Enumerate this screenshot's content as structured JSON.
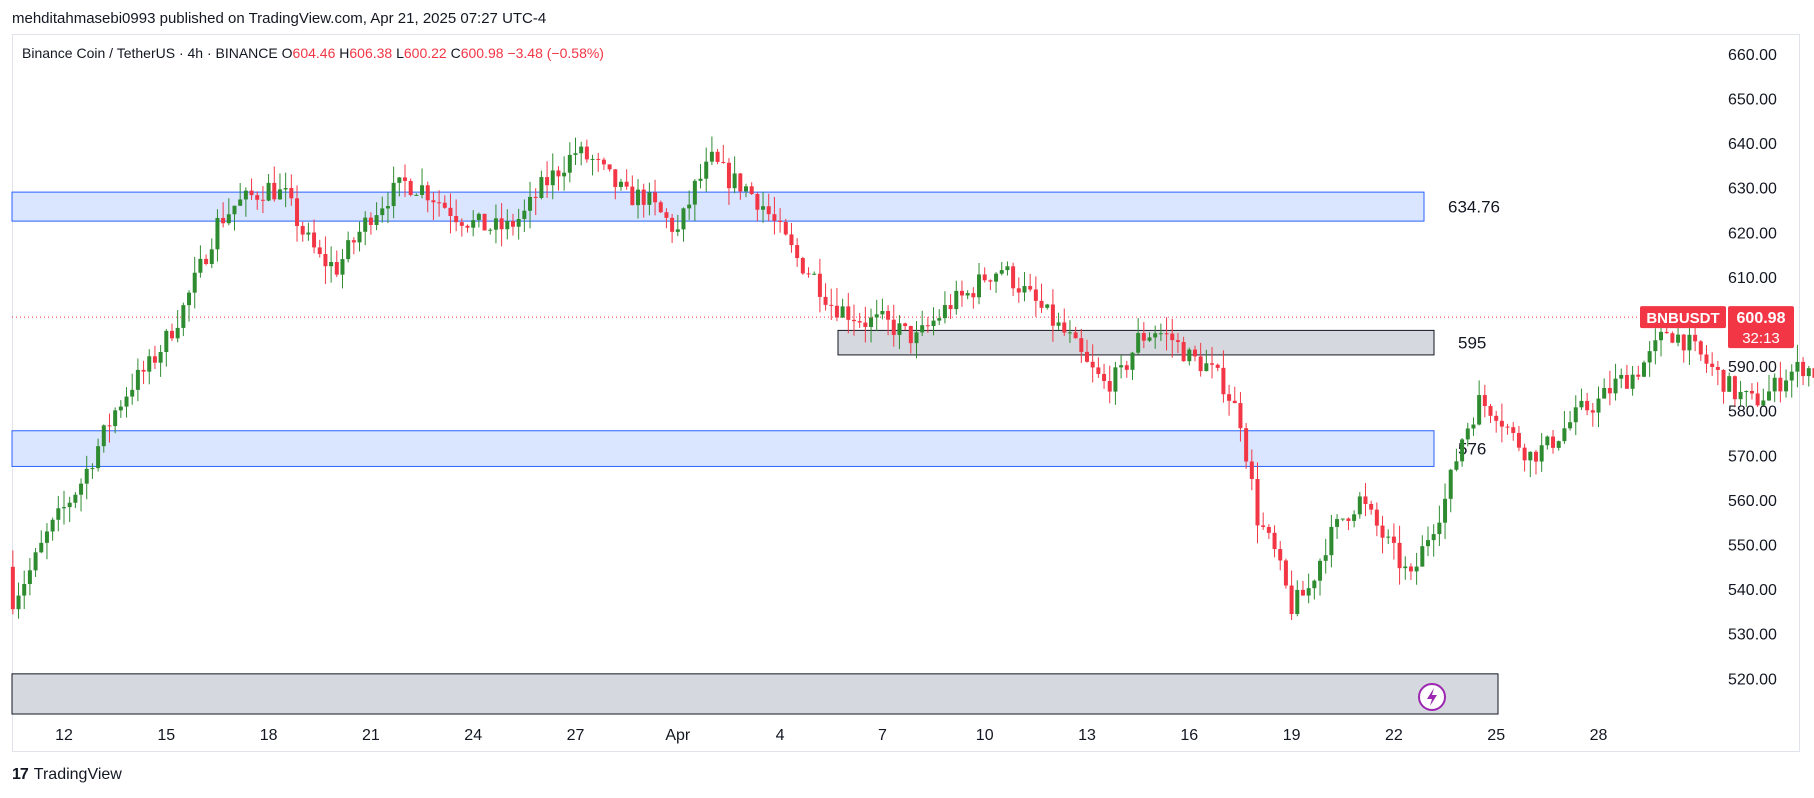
{
  "header": {
    "publisher_line": "mehditahmasebi0993 published on TradingView.com, Apr 21, 2025 07:27 UTC-4"
  },
  "legend": {
    "symbol_line": "Binance Coin / TetherUS · 4h · BINANCE",
    "o_label": "O",
    "o_value": "604.46",
    "h_label": "H",
    "h_value": "606.38",
    "l_label": "L",
    "l_value": "600.22",
    "c_label": "C",
    "c_value": "600.98",
    "change": "−3.48 (−0.58%)"
  },
  "price_tag": {
    "ticker": "BNBUSDT",
    "price": "600.98",
    "countdown": "32:13"
  },
  "footer": {
    "brand": "TradingView",
    "logo_glyph": "17"
  },
  "colors": {
    "up": "#22ab94",
    "up_dark": "#2e8b30",
    "down": "#f23645",
    "blue_zone": "#d6e2ff",
    "blue_border": "#2962ff",
    "gray_zone": "#d1d4dc",
    "gray_border": "#131722",
    "price_line": "#f23645"
  },
  "chart_data": {
    "type": "candlestick",
    "symbol": "BNBUSDT",
    "timeframe": "4h",
    "y_ticks": [
      "660.00",
      "650.00",
      "640.00",
      "630.00",
      "620.00",
      "610.00",
      "590.00",
      "580.00",
      "570.00",
      "560.00",
      "550.00",
      "540.00",
      "530.00",
      "520.00"
    ],
    "ylim": [
      512,
      664
    ],
    "x_ticks": [
      "12",
      "15",
      "18",
      "21",
      "24",
      "27",
      "Apr",
      "4",
      "7",
      "10",
      "13",
      "16",
      "19",
      "22",
      "25",
      "28"
    ],
    "current_price": 600.98,
    "zones": [
      {
        "kind": "blue",
        "top": 629,
        "bottom": 622.5,
        "label": "634.76",
        "start": "Mar 10",
        "end": "Apr 20"
      },
      {
        "kind": "gray",
        "top": 598,
        "bottom": 592.5,
        "label": "595",
        "start": "Apr 3",
        "end": "Apr 21"
      },
      {
        "kind": "blue",
        "top": 575.5,
        "bottom": 567.5,
        "label": "576",
        "start": "Mar 10",
        "end": "Apr 21"
      },
      {
        "kind": "gray",
        "top": 521,
        "bottom": 512,
        "label": "",
        "start": "Mar 10",
        "end": "Apr 23"
      }
    ],
    "close_path": [
      [
        0,
        538
      ],
      [
        3,
        544
      ],
      [
        6,
        552
      ],
      [
        9,
        558
      ],
      [
        12,
        564
      ],
      [
        15,
        572
      ],
      [
        18,
        580
      ],
      [
        21,
        586
      ],
      [
        24,
        590
      ],
      [
        27,
        596
      ],
      [
        30,
        603
      ],
      [
        33,
        612
      ],
      [
        36,
        622
      ],
      [
        39,
        626
      ],
      [
        42,
        628
      ],
      [
        45,
        630
      ],
      [
        48,
        628
      ],
      [
        51,
        620
      ],
      [
        54,
        614
      ],
      [
        57,
        612
      ],
      [
        60,
        618
      ],
      [
        63,
        624
      ],
      [
        66,
        628
      ],
      [
        69,
        631
      ],
      [
        72,
        630
      ],
      [
        75,
        627
      ],
      [
        78,
        624
      ],
      [
        81,
        622
      ],
      [
        84,
        621
      ],
      [
        87,
        621
      ],
      [
        90,
        624
      ],
      [
        93,
        630
      ],
      [
        96,
        634
      ],
      [
        99,
        638
      ],
      [
        102,
        636
      ],
      [
        105,
        632
      ],
      [
        108,
        628
      ],
      [
        111,
        628
      ],
      [
        114,
        624
      ],
      [
        117,
        620
      ],
      [
        120,
        630
      ],
      [
        123,
        636
      ],
      [
        126,
        632
      ],
      [
        129,
        630
      ],
      [
        132,
        626
      ],
      [
        135,
        620
      ],
      [
        138,
        614
      ],
      [
        141,
        610
      ],
      [
        144,
        604
      ],
      [
        147,
        602
      ],
      [
        150,
        600
      ],
      [
        153,
        600
      ],
      [
        156,
        598
      ],
      [
        159,
        596
      ],
      [
        162,
        600
      ],
      [
        165,
        604
      ],
      [
        168,
        606
      ],
      [
        171,
        610
      ],
      [
        174,
        612
      ],
      [
        177,
        608
      ],
      [
        180,
        604
      ],
      [
        183,
        600
      ],
      [
        186,
        596
      ],
      [
        189,
        590
      ],
      [
        192,
        586
      ],
      [
        195,
        588
      ],
      [
        198,
        596
      ],
      [
        201,
        598
      ],
      [
        204,
        596
      ],
      [
        207,
        592
      ],
      [
        210,
        590
      ],
      [
        213,
        586
      ],
      [
        216,
        578
      ],
      [
        219,
        556
      ],
      [
        222,
        548
      ],
      [
        225,
        536
      ],
      [
        228,
        540
      ],
      [
        231,
        550
      ],
      [
        234,
        556
      ],
      [
        237,
        560
      ],
      [
        240,
        554
      ],
      [
        243,
        548
      ],
      [
        246,
        542
      ],
      [
        249,
        552
      ],
      [
        252,
        560
      ],
      [
        255,
        574
      ],
      [
        258,
        582
      ],
      [
        261,
        580
      ],
      [
        264,
        574
      ],
      [
        267,
        570
      ],
      [
        270,
        572
      ],
      [
        273,
        576
      ],
      [
        276,
        580
      ],
      [
        279,
        582
      ],
      [
        282,
        586
      ],
      [
        285,
        588
      ],
      [
        288,
        592
      ],
      [
        291,
        598
      ],
      [
        294,
        596
      ],
      [
        297,
        592
      ],
      [
        300,
        588
      ],
      [
        303,
        584
      ],
      [
        306,
        582
      ],
      [
        309,
        584
      ],
      [
        312,
        588
      ],
      [
        315,
        590
      ],
      [
        318,
        588
      ],
      [
        321,
        586
      ],
      [
        324,
        584
      ],
      [
        327,
        584
      ],
      [
        330,
        582
      ],
      [
        333,
        580
      ],
      [
        336,
        578
      ],
      [
        339,
        582
      ],
      [
        342,
        584
      ],
      [
        345,
        582
      ],
      [
        348,
        584
      ],
      [
        351,
        588
      ],
      [
        354,
        590
      ],
      [
        357,
        590
      ],
      [
        360,
        592
      ],
      [
        363,
        594
      ],
      [
        366,
        592
      ],
      [
        369,
        590
      ],
      [
        372,
        590
      ],
      [
        375,
        588
      ],
      [
        378,
        590
      ],
      [
        381,
        592
      ],
      [
        384,
        592
      ],
      [
        387,
        594
      ],
      [
        390,
        592
      ],
      [
        393,
        588
      ],
      [
        396,
        596
      ],
      [
        398,
        605
      ],
      [
        400,
        601
      ]
    ]
  }
}
